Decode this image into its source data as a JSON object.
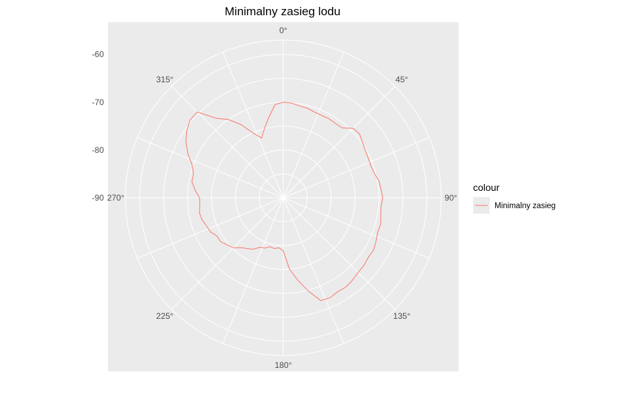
{
  "chart_data": {
    "type": "line",
    "coord": "polar",
    "title": "Minimalny zasieg lodu",
    "xlabel": "",
    "ylabel": "",
    "theta_range": [
      0,
      360
    ],
    "theta_ticks": [
      "0°",
      "45°",
      "90°",
      "135°",
      "180°",
      "225°",
      "270°",
      "315°"
    ],
    "theta_tick_values": [
      0,
      45,
      90,
      135,
      180,
      225,
      270,
      315
    ],
    "r_range": [
      -90,
      -57
    ],
    "r_ticks": [
      "-60",
      "-70",
      "-80",
      "-90"
    ],
    "r_tick_values": [
      -60,
      -70,
      -80,
      -90
    ],
    "background_color": "#EBEBEB",
    "grid": true,
    "grid_color": "#FFFFFF",
    "legend": {
      "title": "colour",
      "position": "right",
      "entries": [
        {
          "label": "Minimalny zasieg",
          "color": "#F8766D"
        }
      ]
    },
    "series": [
      {
        "name": "Minimalny zasieg",
        "color": "#F8766D",
        "points": [
          {
            "lon": 0,
            "lat": -70.0
          },
          {
            "lon": 5,
            "lat": -70.1
          },
          {
            "lon": 10,
            "lat": -70.5
          },
          {
            "lon": 15,
            "lat": -70.6
          },
          {
            "lon": 20,
            "lat": -70.9
          },
          {
            "lon": 25,
            "lat": -71.0
          },
          {
            "lon": 30,
            "lat": -70.9
          },
          {
            "lon": 35,
            "lat": -71.0
          },
          {
            "lon": 40,
            "lat": -70.9
          },
          {
            "lon": 45,
            "lat": -69.4
          },
          {
            "lon": 50,
            "lat": -69.2
          },
          {
            "lon": 55,
            "lat": -69.8
          },
          {
            "lon": 60,
            "lat": -70.2
          },
          {
            "lon": 65,
            "lat": -70.4
          },
          {
            "lon": 70,
            "lat": -70.5
          },
          {
            "lon": 75,
            "lat": -70.3
          },
          {
            "lon": 80,
            "lat": -69.7
          },
          {
            "lon": 85,
            "lat": -69.5
          },
          {
            "lon": 90,
            "lat": -69.2
          },
          {
            "lon": 95,
            "lat": -69.5
          },
          {
            "lon": 100,
            "lat": -69.3
          },
          {
            "lon": 105,
            "lat": -68.9
          },
          {
            "lon": 110,
            "lat": -69.0
          },
          {
            "lon": 115,
            "lat": -68.6
          },
          {
            "lon": 120,
            "lat": -68.2
          },
          {
            "lon": 125,
            "lat": -68.3
          },
          {
            "lon": 130,
            "lat": -68.0
          },
          {
            "lon": 135,
            "lat": -67.9
          },
          {
            "lon": 140,
            "lat": -67.5
          },
          {
            "lon": 145,
            "lat": -67.2
          },
          {
            "lon": 150,
            "lat": -67.3
          },
          {
            "lon": 155,
            "lat": -66.9
          },
          {
            "lon": 160,
            "lat": -67.1
          },
          {
            "lon": 165,
            "lat": -69.8
          },
          {
            "lon": 170,
            "lat": -72.5
          },
          {
            "lon": 175,
            "lat": -75.0
          },
          {
            "lon": 180,
            "lat": -78.9
          },
          {
            "lon": 185,
            "lat": -79.5
          },
          {
            "lon": 190,
            "lat": -79.2
          },
          {
            "lon": 195,
            "lat": -79.4
          },
          {
            "lon": 200,
            "lat": -78.8
          },
          {
            "lon": 205,
            "lat": -78.6
          },
          {
            "lon": 210,
            "lat": -77.6
          },
          {
            "lon": 215,
            "lat": -77.0
          },
          {
            "lon": 220,
            "lat": -76.4
          },
          {
            "lon": 225,
            "lat": -75.2
          },
          {
            "lon": 230,
            "lat": -74.7
          },
          {
            "lon": 235,
            "lat": -74.0
          },
          {
            "lon": 240,
            "lat": -74.0
          },
          {
            "lon": 245,
            "lat": -73.2
          },
          {
            "lon": 250,
            "lat": -72.9
          },
          {
            "lon": 255,
            "lat": -72.4
          },
          {
            "lon": 260,
            "lat": -72.2
          },
          {
            "lon": 265,
            "lat": -72.5
          },
          {
            "lon": 270,
            "lat": -72.5
          },
          {
            "lon": 275,
            "lat": -71.5
          },
          {
            "lon": 280,
            "lat": -70.6
          },
          {
            "lon": 285,
            "lat": -70.6
          },
          {
            "lon": 290,
            "lat": -69.7
          },
          {
            "lon": 295,
            "lat": -68.0
          },
          {
            "lon": 300,
            "lat": -66.5
          },
          {
            "lon": 305,
            "lat": -65.4
          },
          {
            "lon": 310,
            "lat": -64.6
          },
          {
            "lon": 315,
            "lat": -64.6
          },
          {
            "lon": 320,
            "lat": -68.3
          },
          {
            "lon": 325,
            "lat": -70.0
          },
          {
            "lon": 330,
            "lat": -72.3
          },
          {
            "lon": 335,
            "lat": -75.0
          },
          {
            "lon": 340,
            "lat": -76.7
          },
          {
            "lon": 345,
            "lat": -74.9
          },
          {
            "lon": 350,
            "lat": -72.8
          },
          {
            "lon": 355,
            "lat": -70.4
          },
          {
            "lon": 360,
            "lat": -70.0
          }
        ]
      }
    ]
  }
}
